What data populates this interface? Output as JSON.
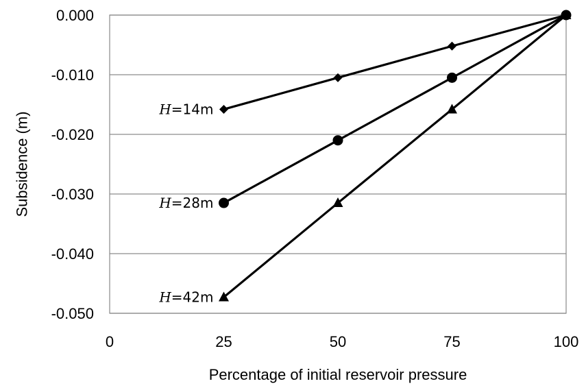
{
  "chart_data": {
    "type": "line",
    "title": "",
    "xlabel": "Percentage of initial reservoir pressure",
    "ylabel": "Subsidence (m)",
    "xlim": [
      0,
      100
    ],
    "ylim": [
      -0.05,
      0.0
    ],
    "xticks": [
      0,
      25,
      50,
      75,
      100
    ],
    "xtick_labels": [
      "0",
      "25",
      "50",
      "75",
      "100"
    ],
    "yticks": [
      0.0,
      -0.01,
      -0.02,
      -0.03,
      -0.04,
      -0.05
    ],
    "ytick_labels": [
      "0.000",
      "-0.010",
      "-0.020",
      "-0.030",
      "-0.040",
      "-0.050"
    ],
    "grid": "horizontal",
    "line_color": "#000000",
    "x": [
      25,
      50,
      75,
      100
    ],
    "series": [
      {
        "name": "H=14m",
        "label_var": "H",
        "label_rest": "=14m",
        "marker": "diamond",
        "values": [
          -0.0158,
          -0.0105,
          -0.0052,
          0.0
        ]
      },
      {
        "name": "H=28m",
        "label_var": "H",
        "label_rest": "=28m",
        "marker": "circle",
        "values": [
          -0.0315,
          -0.021,
          -0.0105,
          0.0
        ]
      },
      {
        "name": "H=42m",
        "label_var": "H",
        "label_rest": "=42m",
        "marker": "triangle",
        "values": [
          -0.0473,
          -0.0315,
          -0.0158,
          0.0
        ]
      }
    ]
  }
}
